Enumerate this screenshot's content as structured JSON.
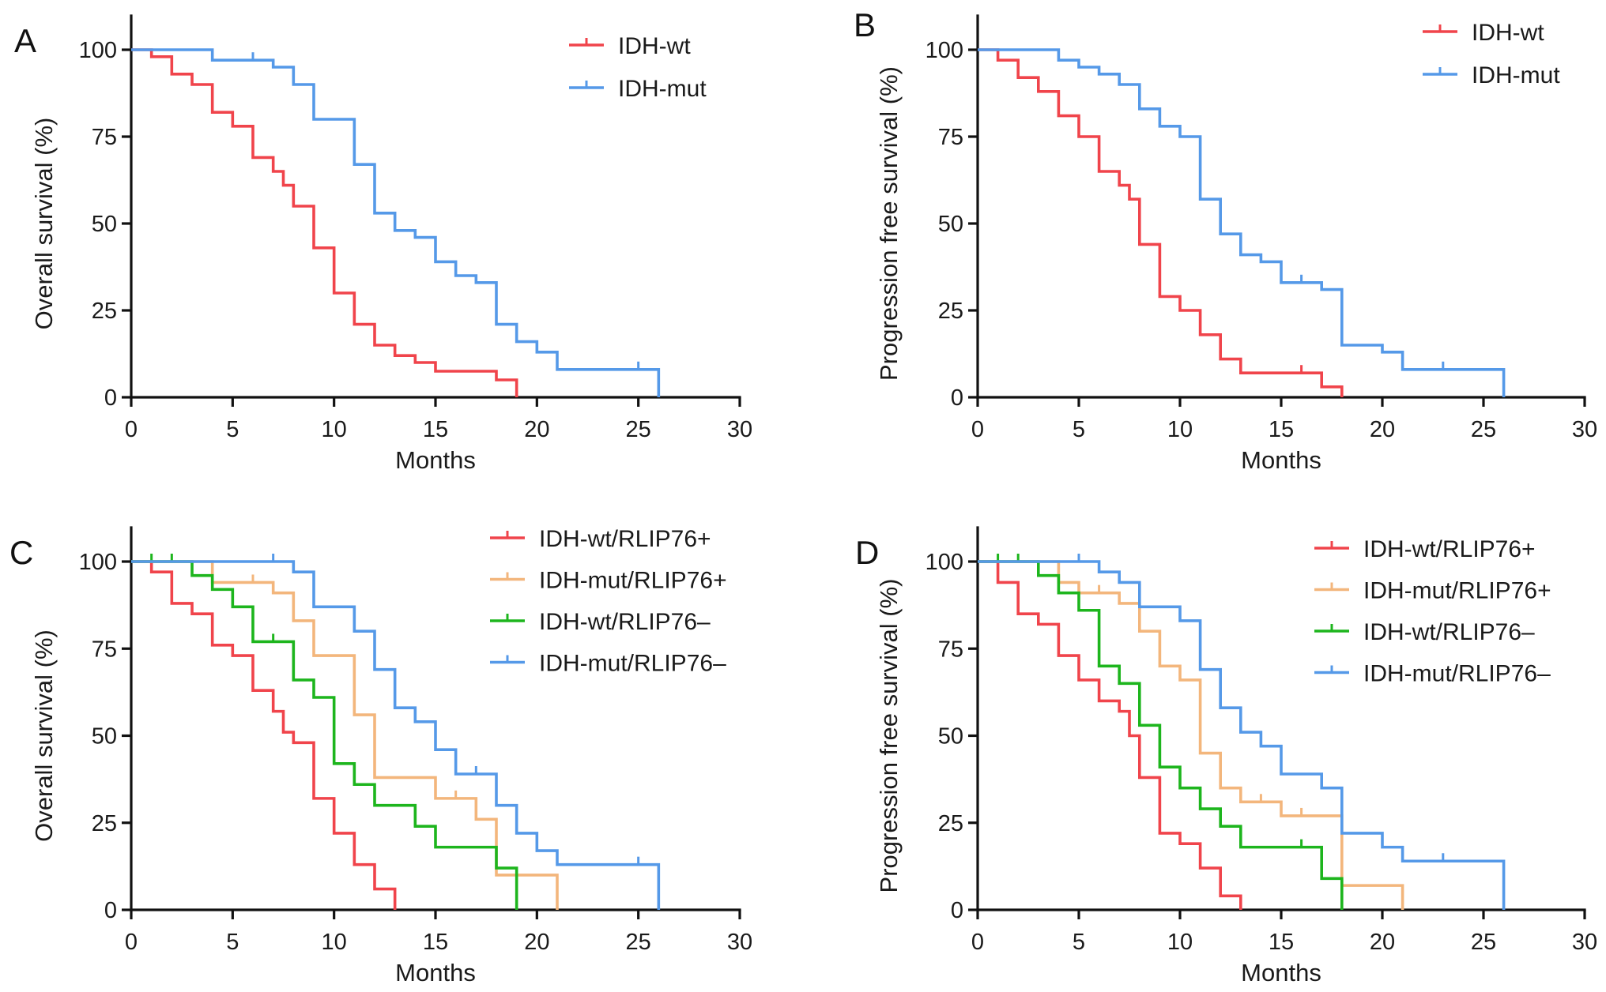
{
  "figure": {
    "panels": [
      "A",
      "B",
      "C",
      "D"
    ]
  },
  "chart_data": [
    {
      "type": "line",
      "subtype": "kaplan-meier",
      "panel": "A",
      "title": "",
      "xlabel": "Months",
      "ylabel": "Overall survival (%)",
      "xlim": [
        0,
        30
      ],
      "ylim": [
        0,
        110
      ],
      "xticks": [
        "0",
        "5",
        "10",
        "15",
        "20",
        "25",
        "30"
      ],
      "yticks": [
        "0",
        "25",
        "50",
        "75",
        "100"
      ],
      "grid": false,
      "legend_position": "top-right",
      "series": [
        {
          "name": "IDH-wt",
          "color": "#f0444b",
          "steps": [
            [
              0,
              100
            ],
            [
              1,
              98
            ],
            [
              2,
              93
            ],
            [
              3,
              90
            ],
            [
              4,
              82
            ],
            [
              5,
              78
            ],
            [
              6,
              69
            ],
            [
              7,
              65
            ],
            [
              7.5,
              61
            ],
            [
              8,
              55
            ],
            [
              9,
              43
            ],
            [
              10,
              30
            ],
            [
              11,
              21
            ],
            [
              12,
              15
            ],
            [
              13,
              12
            ],
            [
              14,
              10
            ],
            [
              15,
              7.5
            ],
            [
              18,
              5
            ],
            [
              19,
              0
            ]
          ],
          "censored": []
        },
        {
          "name": "IDH-mut",
          "color": "#5599e8",
          "steps": [
            [
              0,
              100
            ],
            [
              4,
              97
            ],
            [
              7,
              95
            ],
            [
              8,
              90
            ],
            [
              9,
              80
            ],
            [
              11,
              67
            ],
            [
              12,
              53
            ],
            [
              13,
              48
            ],
            [
              14,
              46
            ],
            [
              15,
              39
            ],
            [
              16,
              35
            ],
            [
              17,
              33
            ],
            [
              18,
              21
            ],
            [
              19,
              16
            ],
            [
              20,
              13
            ],
            [
              21,
              8
            ],
            [
              26,
              0
            ]
          ],
          "censored": [
            6,
            25
          ]
        }
      ]
    },
    {
      "type": "line",
      "subtype": "kaplan-meier",
      "panel": "B",
      "title": "",
      "xlabel": "Months",
      "ylabel": "Progression free survival (%)",
      "xlim": [
        0,
        30
      ],
      "ylim": [
        0,
        110
      ],
      "xticks": [
        "0",
        "5",
        "10",
        "15",
        "20",
        "25",
        "30"
      ],
      "yticks": [
        "0",
        "25",
        "50",
        "75",
        "100"
      ],
      "grid": false,
      "legend_position": "top-right",
      "series": [
        {
          "name": "IDH-wt",
          "color": "#f0444b",
          "steps": [
            [
              0,
              100
            ],
            [
              1,
              97
            ],
            [
              2,
              92
            ],
            [
              3,
              88
            ],
            [
              4,
              81
            ],
            [
              5,
              75
            ],
            [
              6,
              65
            ],
            [
              7,
              61
            ],
            [
              7.5,
              57
            ],
            [
              8,
              44
            ],
            [
              9,
              29
            ],
            [
              10,
              25
            ],
            [
              11,
              18
            ],
            [
              12,
              11
            ],
            [
              13,
              7
            ],
            [
              17,
              3
            ],
            [
              18,
              0
            ]
          ],
          "censored": [
            16
          ]
        },
        {
          "name": "IDH-mut",
          "color": "#5599e8",
          "steps": [
            [
              0,
              100
            ],
            [
              4,
              97
            ],
            [
              5,
              95
            ],
            [
              6,
              93
            ],
            [
              7,
              90
            ],
            [
              8,
              83
            ],
            [
              9,
              78
            ],
            [
              10,
              75
            ],
            [
              11,
              57
            ],
            [
              12,
              47
            ],
            [
              13,
              41
            ],
            [
              14,
              39
            ],
            [
              15,
              33
            ],
            [
              17,
              31
            ],
            [
              18,
              15
            ],
            [
              20,
              13
            ],
            [
              21,
              8
            ],
            [
              26,
              0
            ]
          ],
          "censored": [
            16,
            23
          ]
        }
      ]
    },
    {
      "type": "line",
      "subtype": "kaplan-meier",
      "panel": "C",
      "title": "",
      "xlabel": "Months",
      "ylabel": "Overall survival (%)",
      "xlim": [
        0,
        30
      ],
      "ylim": [
        0,
        110
      ],
      "xticks": [
        "0",
        "5",
        "10",
        "15",
        "20",
        "25",
        "30"
      ],
      "yticks": [
        "0",
        "25",
        "50",
        "75",
        "100"
      ],
      "grid": false,
      "legend_position": "top-right",
      "series": [
        {
          "name": "IDH-wt/RLIP76+",
          "color": "#f0444b",
          "steps": [
            [
              0,
              100
            ],
            [
              1,
              97
            ],
            [
              2,
              88
            ],
            [
              3,
              85
            ],
            [
              4,
              76
            ],
            [
              5,
              73
            ],
            [
              6,
              63
            ],
            [
              7,
              57
            ],
            [
              7.5,
              51
            ],
            [
              8,
              48
            ],
            [
              9,
              32
            ],
            [
              10,
              22
            ],
            [
              11,
              13
            ],
            [
              12,
              6
            ],
            [
              13,
              0
            ]
          ],
          "censored": []
        },
        {
          "name": "IDH-mut/RLIP76+",
          "color": "#f3b67c",
          "steps": [
            [
              0,
              100
            ],
            [
              4,
              94
            ],
            [
              7,
              91
            ],
            [
              8,
              83
            ],
            [
              9,
              73
            ],
            [
              11,
              56
            ],
            [
              12,
              38
            ],
            [
              15,
              32
            ],
            [
              17,
              26
            ],
            [
              18,
              10
            ],
            [
              21,
              0
            ]
          ],
          "censored": [
            6,
            16
          ]
        },
        {
          "name": "IDH-wt/RLIP76–",
          "color": "#1db51d",
          "steps": [
            [
              0,
              100
            ],
            [
              3,
              96
            ],
            [
              4,
              92
            ],
            [
              5,
              87
            ],
            [
              6,
              77
            ],
            [
              8,
              66
            ],
            [
              9,
              61
            ],
            [
              10,
              42
            ],
            [
              11,
              36
            ],
            [
              12,
              30
            ],
            [
              14,
              24
            ],
            [
              15,
              18
            ],
            [
              18,
              12
            ],
            [
              19,
              0
            ]
          ],
          "censored": [
            1,
            2,
            7
          ]
        },
        {
          "name": "IDH-mut/RLIP76–",
          "color": "#5599e8",
          "steps": [
            [
              0,
              100
            ],
            [
              8,
              97
            ],
            [
              9,
              87
            ],
            [
              11,
              80
            ],
            [
              12,
              69
            ],
            [
              13,
              58
            ],
            [
              14,
              54
            ],
            [
              15,
              46
            ],
            [
              16,
              39
            ],
            [
              18,
              30
            ],
            [
              19,
              22
            ],
            [
              20,
              17
            ],
            [
              21,
              13
            ],
            [
              26,
              0
            ]
          ],
          "censored": [
            7,
            17,
            25
          ]
        }
      ]
    },
    {
      "type": "line",
      "subtype": "kaplan-meier",
      "panel": "D",
      "title": "",
      "xlabel": "Months",
      "ylabel": "Progression free survival (%)",
      "xlim": [
        0,
        30
      ],
      "ylim": [
        0,
        110
      ],
      "xticks": [
        "0",
        "5",
        "10",
        "15",
        "20",
        "25",
        "30"
      ],
      "yticks": [
        "0",
        "25",
        "50",
        "75",
        "100"
      ],
      "grid": false,
      "legend_position": "top-right",
      "series": [
        {
          "name": "IDH-wt/RLIP76+",
          "color": "#f0444b",
          "steps": [
            [
              0,
              100
            ],
            [
              1,
              94
            ],
            [
              2,
              85
            ],
            [
              3,
              82
            ],
            [
              4,
              73
            ],
            [
              5,
              66
            ],
            [
              6,
              60
            ],
            [
              7,
              57
            ],
            [
              7.5,
              50
            ],
            [
              8,
              38
            ],
            [
              9,
              22
            ],
            [
              10,
              19
            ],
            [
              11,
              12
            ],
            [
              12,
              4
            ],
            [
              13,
              0
            ]
          ],
          "censored": []
        },
        {
          "name": "IDH-mut/RLIP76+",
          "color": "#f3b67c",
          "steps": [
            [
              0,
              100
            ],
            [
              4,
              94
            ],
            [
              5,
              91
            ],
            [
              7,
              88
            ],
            [
              8,
              80
            ],
            [
              9,
              70
            ],
            [
              10,
              66
            ],
            [
              11,
              45
            ],
            [
              12,
              35
            ],
            [
              13,
              31
            ],
            [
              15,
              27
            ],
            [
              18,
              7
            ],
            [
              21,
              0
            ]
          ],
          "censored": [
            6,
            14,
            16
          ]
        },
        {
          "name": "IDH-wt/RLIP76–",
          "color": "#1db51d",
          "steps": [
            [
              0,
              100
            ],
            [
              3,
              96
            ],
            [
              4,
              91
            ],
            [
              5,
              86
            ],
            [
              6,
              70
            ],
            [
              7,
              65
            ],
            [
              8,
              53
            ],
            [
              9,
              41
            ],
            [
              10,
              35
            ],
            [
              11,
              29
            ],
            [
              12,
              24
            ],
            [
              13,
              18
            ],
            [
              17,
              9
            ],
            [
              18,
              0
            ]
          ],
          "censored": [
            1,
            2,
            16
          ]
        },
        {
          "name": "IDH-mut/RLIP76–",
          "color": "#5599e8",
          "steps": [
            [
              0,
              100
            ],
            [
              6,
              97
            ],
            [
              7,
              94
            ],
            [
              8,
              87
            ],
            [
              10,
              83
            ],
            [
              11,
              69
            ],
            [
              12,
              58
            ],
            [
              13,
              51
            ],
            [
              14,
              47
            ],
            [
              15,
              39
            ],
            [
              17,
              35
            ],
            [
              18,
              22
            ],
            [
              20,
              18
            ],
            [
              21,
              14
            ],
            [
              26,
              0
            ]
          ],
          "censored": [
            5,
            23
          ]
        }
      ]
    }
  ]
}
